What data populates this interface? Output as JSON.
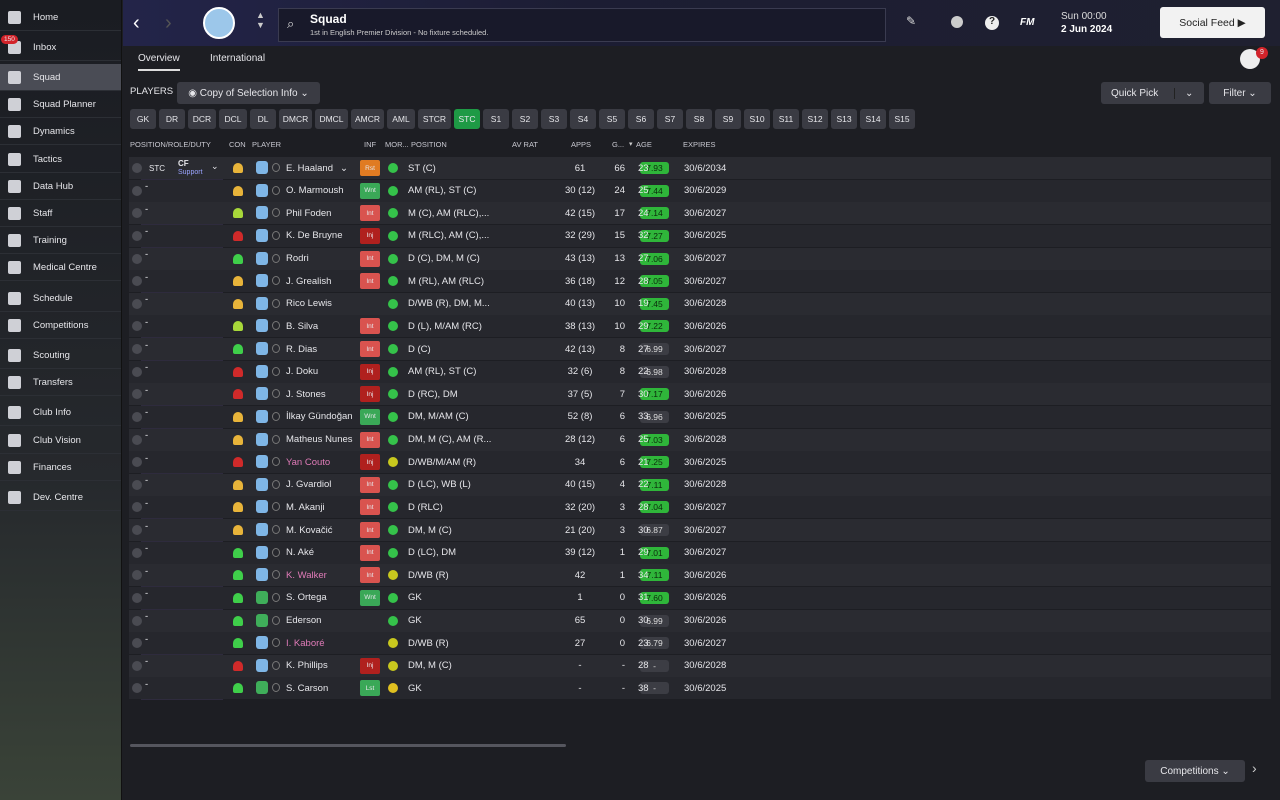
{
  "sidebar": {
    "items": [
      "Home",
      "Inbox",
      "Squad",
      "Squad Planner",
      "Dynamics",
      "Tactics",
      "Data Hub",
      "Staff",
      "Training",
      "Medical Centre",
      "Schedule",
      "Competitions",
      "Scouting",
      "Transfers",
      "Club Info",
      "Club Vision",
      "Finances",
      "Dev. Centre"
    ],
    "inbox_badge": "150",
    "active": 2
  },
  "header": {
    "title": "Squad",
    "subtitle": "1st in English Premier Division - No fixture scheduled.",
    "logo": "FM",
    "time": "Sun 00:00",
    "date": "2 Jun 2024",
    "social": "Social Feed",
    "badge": "9"
  },
  "tabs": [
    "Overview",
    "International"
  ],
  "toolbar": {
    "label": "PLAYERS",
    "copy": "Copy of Selection Info",
    "quick_pick": "Quick Pick",
    "filter": "Filter"
  },
  "positions": {
    "items": [
      "GK",
      "DR",
      "DCR",
      "DCL",
      "DL",
      "DMCR",
      "DMCL",
      "AMCR",
      "AML",
      "STCR",
      "STC",
      "S1",
      "S2",
      "S3",
      "S4",
      "S5",
      "S6",
      "S7",
      "S8",
      "S9",
      "S10",
      "S11",
      "S12",
      "S13",
      "S14",
      "S15"
    ],
    "active": 10
  },
  "table": {
    "columns": [
      "POSITION/ROLE/DUTY",
      "CON",
      "PLAYER",
      "INF",
      "MOR...",
      "POSITION",
      "AV RAT",
      "APPS",
      "G...",
      "AGE",
      "EXPIRES"
    ],
    "selection": {
      "pos": "STC",
      "role": "CF",
      "duty": "Support",
      "empty": "-"
    },
    "rows": [
      {
        "name": "E. Haaland",
        "inf": "Rst",
        "inf_color": "#e07b22",
        "position": "ST (C)",
        "rating": "7.93",
        "apps": "61",
        "goals": "66",
        "age": "23",
        "expires": "30/6/2034",
        "con": "#e8b43a",
        "mor": "#35c24a",
        "kit": "#7fb6e6"
      },
      {
        "name": "O. Marmoush",
        "inf": "Wnt",
        "inf_color": "#3aa857",
        "position": "AM (RL), ST (C)",
        "rating": "7.44",
        "apps": "30 (12)",
        "goals": "24",
        "age": "25",
        "expires": "30/6/2029",
        "con": "#e8b43a",
        "mor": "#35c24a",
        "kit": "#7fb6e6"
      },
      {
        "name": "Phil Foden",
        "inf": "Int",
        "inf_color": "#d9534f",
        "position": "M (C), AM (RLC),...",
        "rating": "7.14",
        "apps": "42 (15)",
        "goals": "17",
        "age": "24",
        "expires": "30/6/2027",
        "con": "#a8d83a",
        "mor": "#35c24a",
        "kit": "#7fb6e6"
      },
      {
        "name": "K. De Bruyne",
        "inf": "Inj",
        "inf_color": "#b0201e",
        "position": "M (RLC), AM (C),...",
        "rating": "7.27",
        "apps": "32 (29)",
        "goals": "15",
        "age": "32",
        "expires": "30/6/2025",
        "con": "#d02a2a",
        "mor": "#35c24a",
        "kit": "#7fb6e6"
      },
      {
        "name": "Rodri",
        "inf": "Int",
        "inf_color": "#d9534f",
        "position": "D (C), DM, M (C)",
        "rating": "7.06",
        "apps": "43 (13)",
        "goals": "13",
        "age": "27",
        "expires": "30/6/2027",
        "con": "#3fcf4a",
        "mor": "#35c24a",
        "kit": "#7fb6e6"
      },
      {
        "name": "J. Grealish",
        "inf": "Int",
        "inf_color": "#d9534f",
        "position": "M (RL), AM (RLC)",
        "rating": "7.05",
        "apps": "36 (18)",
        "goals": "12",
        "age": "28",
        "expires": "30/6/2027",
        "con": "#e8b43a",
        "mor": "#35c24a",
        "kit": "#7fb6e6"
      },
      {
        "name": "Rico Lewis",
        "inf": "",
        "inf_color": "#2a2b31",
        "position": "D/WB (R), DM, M...",
        "rating": "7.45",
        "apps": "40 (13)",
        "goals": "10",
        "age": "19",
        "expires": "30/6/2028",
        "con": "#e8b43a",
        "mor": "#35c24a",
        "kit": "#7fb6e6"
      },
      {
        "name": "B. Silva",
        "inf": "Int",
        "inf_color": "#d9534f",
        "position": "D (L), M/AM (RC)",
        "rating": "7.22",
        "apps": "38 (13)",
        "goals": "10",
        "age": "29",
        "expires": "30/6/2026",
        "con": "#a8d83a",
        "mor": "#35c24a",
        "kit": "#7fb6e6"
      },
      {
        "name": "R. Dias",
        "inf": "Int",
        "inf_color": "#d9534f",
        "position": "D (C)",
        "rating": "6.99",
        "apps": "42 (13)",
        "goals": "8",
        "age": "27",
        "expires": "30/6/2027",
        "con": "#3fcf4a",
        "mor": "#35c24a",
        "kit": "#7fb6e6"
      },
      {
        "name": "J. Doku",
        "inf": "Inj",
        "inf_color": "#b0201e",
        "position": "AM (RL), ST (C)",
        "rating": "6.98",
        "apps": "32 (6)",
        "goals": "8",
        "age": "22",
        "expires": "30/6/2028",
        "con": "#d02a2a",
        "mor": "#35c24a",
        "kit": "#7fb6e6"
      },
      {
        "name": "J. Stones",
        "inf": "Inj",
        "inf_color": "#b0201e",
        "position": "D (RC), DM",
        "rating": "7.17",
        "apps": "37 (5)",
        "goals": "7",
        "age": "30",
        "expires": "30/6/2026",
        "con": "#d02a2a",
        "mor": "#35c24a",
        "kit": "#7fb6e6"
      },
      {
        "name": "İlkay Gündoğan",
        "inf": "Wnt",
        "inf_color": "#3aa857",
        "position": "DM, M/AM (C)",
        "rating": "6.96",
        "apps": "52 (8)",
        "goals": "6",
        "age": "33",
        "expires": "30/6/2025",
        "con": "#e8b43a",
        "mor": "#35c24a",
        "kit": "#7fb6e6"
      },
      {
        "name": "Matheus Nunes",
        "inf": "Int",
        "inf_color": "#d9534f",
        "position": "DM, M (C), AM (R...",
        "rating": "7.03",
        "apps": "28 (12)",
        "goals": "6",
        "age": "25",
        "expires": "30/6/2028",
        "con": "#e8b43a",
        "mor": "#35c24a",
        "kit": "#7fb6e6"
      },
      {
        "name": "Yan Couto",
        "name_color": "#e07bb8",
        "inf": "Inj",
        "inf_color": "#b0201e",
        "position": "D/WB/M/AM (R)",
        "rating": "7.25",
        "apps": "34",
        "goals": "6",
        "age": "21",
        "expires": "30/6/2025",
        "con": "#d02a2a",
        "mor": "#c8c81e",
        "kit": "#7fb6e6"
      },
      {
        "name": "J. Gvardiol",
        "inf": "Int",
        "inf_color": "#d9534f",
        "position": "D (LC), WB (L)",
        "rating": "7.11",
        "apps": "40 (15)",
        "goals": "4",
        "age": "22",
        "expires": "30/6/2028",
        "con": "#e8b43a",
        "mor": "#35c24a",
        "kit": "#7fb6e6"
      },
      {
        "name": "M. Akanji",
        "inf": "Int",
        "inf_color": "#d9534f",
        "position": "D (RLC)",
        "rating": "7.04",
        "apps": "32 (20)",
        "goals": "3",
        "age": "28",
        "expires": "30/6/2027",
        "con": "#e8b43a",
        "mor": "#35c24a",
        "kit": "#7fb6e6"
      },
      {
        "name": "M. Kovačić",
        "inf": "Int",
        "inf_color": "#d9534f",
        "position": "DM, M (C)",
        "rating": "6.87",
        "apps": "21 (20)",
        "goals": "3",
        "age": "30",
        "expires": "30/6/2027",
        "con": "#e8b43a",
        "mor": "#35c24a",
        "kit": "#7fb6e6"
      },
      {
        "name": "N. Aké",
        "inf": "Int",
        "inf_color": "#d9534f",
        "position": "D (LC), DM",
        "rating": "7.01",
        "apps": "39 (12)",
        "goals": "1",
        "age": "29",
        "expires": "30/6/2027",
        "con": "#3fcf4a",
        "mor": "#35c24a",
        "kit": "#7fb6e6"
      },
      {
        "name": "K. Walker",
        "name_color": "#e07bb8",
        "inf": "Int",
        "inf_color": "#d9534f",
        "position": "D/WB (R)",
        "rating": "7.11",
        "apps": "42",
        "goals": "1",
        "age": "34",
        "expires": "30/6/2026",
        "con": "#3fcf4a",
        "mor": "#c8c81e",
        "kit": "#7fb6e6"
      },
      {
        "name": "S. Ortega",
        "inf": "Wnt",
        "inf_color": "#3aa857",
        "position": "GK",
        "rating": "7.60",
        "apps": "1",
        "goals": "0",
        "age": "31",
        "expires": "30/6/2026",
        "con": "#3fcf4a",
        "mor": "#35c24a",
        "kit": "#3fae5a"
      },
      {
        "name": "Ederson",
        "inf": "",
        "inf_color": "#2a2b31",
        "position": "GK",
        "rating": "6.99",
        "apps": "65",
        "goals": "0",
        "age": "30",
        "expires": "30/6/2026",
        "con": "#3fcf4a",
        "mor": "#35c24a",
        "kit": "#3fae5a"
      },
      {
        "name": "I. Kaboré",
        "name_color": "#e07bb8",
        "inf": "",
        "inf_color": "#2a2b31",
        "position": "D/WB (R)",
        "rating": "6.79",
        "apps": "27",
        "goals": "0",
        "age": "23",
        "expires": "30/6/2027",
        "con": "#3fcf4a",
        "mor": "#c8c81e",
        "kit": "#7fb6e6"
      },
      {
        "name": "K. Phillips",
        "inf": "Inj",
        "inf_color": "#b0201e",
        "position": "DM, M (C)",
        "rating": "-",
        "apps": "-",
        "goals": "-",
        "age": "28",
        "expires": "30/6/2028",
        "con": "#d02a2a",
        "mor": "#c8c81e",
        "kit": "#7fb6e6"
      },
      {
        "name": "S. Carson",
        "inf": "Lst",
        "inf_color": "#3aa857",
        "position": "GK",
        "rating": "-",
        "apps": "-",
        "goals": "-",
        "age": "38",
        "expires": "30/6/2025",
        "con": "#3fcf4a",
        "mor": "#e0c020",
        "kit": "#3fae5a"
      }
    ]
  },
  "footer": {
    "button": "Competitions"
  }
}
